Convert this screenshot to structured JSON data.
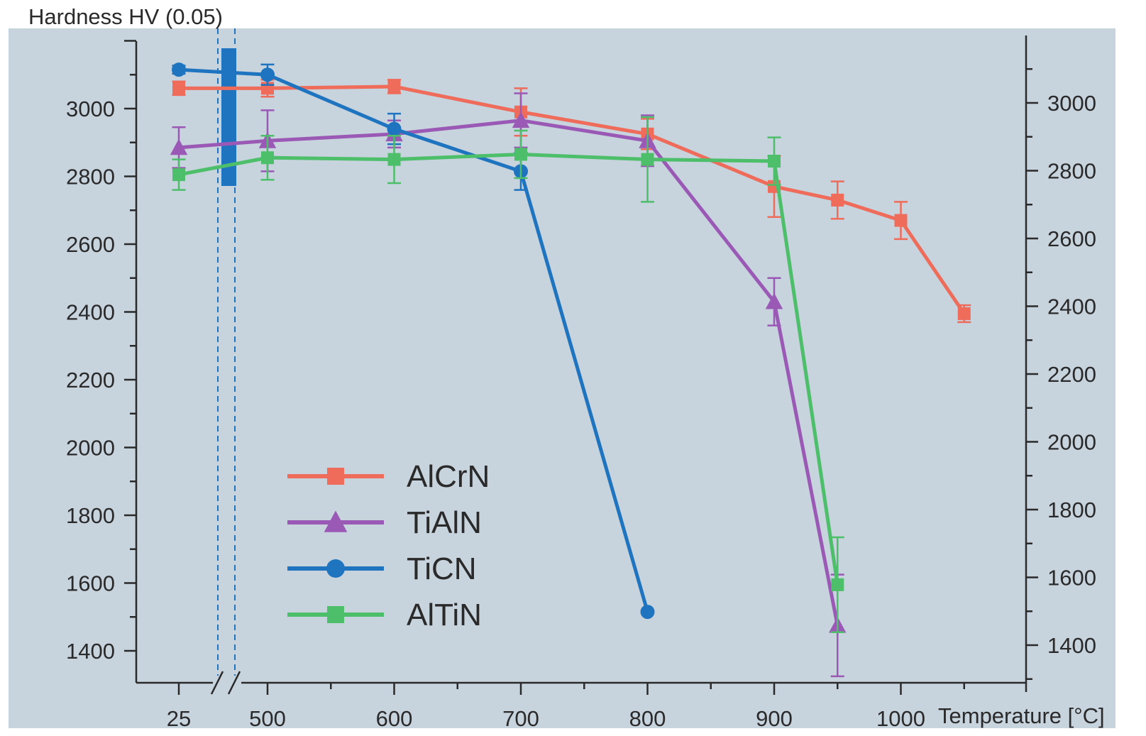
{
  "chart_data": {
    "type": "line",
    "ylabel": "Hardness HV (0.05)",
    "xlabel": "Temperature [°C]",
    "x_categories": [
      "25",
      "500",
      "600",
      "700",
      "800",
      "900",
      "1000"
    ],
    "x_axis_break": "between 25 and 500",
    "x": [
      25,
      500,
      600,
      700,
      800,
      900,
      950,
      1000,
      1050
    ],
    "ylim": [
      1300,
      3200
    ],
    "y_ticks": [
      1400,
      1600,
      1800,
      2000,
      2200,
      2400,
      2600,
      2800,
      3000
    ],
    "secondary_y_axis": "right, same scale",
    "grid": false,
    "legend_position": "center-left",
    "series": [
      {
        "name": "AlCrN",
        "color": "#ef6b5a",
        "marker": "square",
        "points": [
          {
            "x": 25,
            "y": 3060,
            "err": 20
          },
          {
            "x": 500,
            "y": 3060,
            "err": 25
          },
          {
            "x": 600,
            "y": 3065,
            "err": 20
          },
          {
            "x": 700,
            "y": 2990,
            "err": 70
          },
          {
            "x": 800,
            "y": 2925,
            "err": 45
          },
          {
            "x": 900,
            "y": 2770,
            "err": 90
          },
          {
            "x": 950,
            "y": 2730,
            "err": 55
          },
          {
            "x": 1000,
            "y": 2670,
            "err": 55
          },
          {
            "x": 1050,
            "y": 2395,
            "err": 25
          }
        ]
      },
      {
        "name": "TiAlN",
        "color": "#9b59b6",
        "marker": "triangle",
        "points": [
          {
            "x": 25,
            "y": 2885,
            "err": 60
          },
          {
            "x": 500,
            "y": 2905,
            "err": 90
          },
          {
            "x": 600,
            "y": 2925,
            "err": 40
          },
          {
            "x": 700,
            "y": 2965,
            "err": 80
          },
          {
            "x": 800,
            "y": 2905,
            "err": 75
          },
          {
            "x": 900,
            "y": 2430,
            "err": 70
          },
          {
            "x": 950,
            "y": 1475,
            "err": 150
          }
        ]
      },
      {
        "name": "TiCN",
        "color": "#1f74c0",
        "marker": "circle",
        "points": [
          {
            "x": 25,
            "y": 3115,
            "err": 12
          },
          {
            "x": 500,
            "y": 3100,
            "err": 30
          },
          {
            "x": 600,
            "y": 2940,
            "err": 45
          },
          {
            "x": 700,
            "y": 2815,
            "err": 55
          },
          {
            "x": 800,
            "y": 1515,
            "err": 0
          }
        ]
      },
      {
        "name": "AlTiN",
        "color": "#4dbe6a",
        "marker": "square",
        "points": [
          {
            "x": 25,
            "y": 2805,
            "err": 45
          },
          {
            "x": 500,
            "y": 2855,
            "err": 65
          },
          {
            "x": 600,
            "y": 2850,
            "err": 70
          },
          {
            "x": 700,
            "y": 2865,
            "err": 70
          },
          {
            "x": 800,
            "y": 2850,
            "err": 125
          },
          {
            "x": 900,
            "y": 2845,
            "err": 70
          },
          {
            "x": 950,
            "y": 1595,
            "err": 140
          }
        ]
      }
    ]
  }
}
